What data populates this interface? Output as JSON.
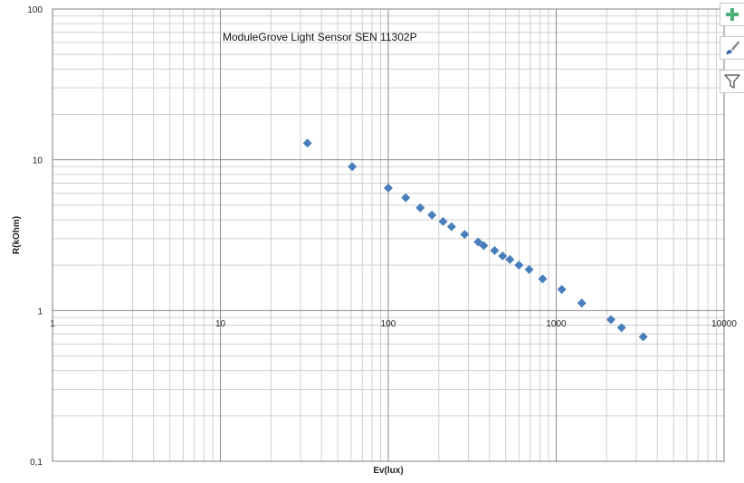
{
  "chart_data": {
    "type": "scatter",
    "title": "ModuleGrove Light Sensor SEN 11302P",
    "xlabel": "Ev(lux)",
    "ylabel": "R(kOhm)",
    "x_scale": "log",
    "y_scale": "log",
    "xlim": [
      1,
      10000
    ],
    "ylim": [
      0.1,
      100
    ],
    "x_ticks": [
      {
        "value": 1,
        "label": "1"
      },
      {
        "value": 10,
        "label": "10"
      },
      {
        "value": 100,
        "label": "100"
      },
      {
        "value": 1000,
        "label": "1000"
      },
      {
        "value": 10000,
        "label": "10000"
      }
    ],
    "y_ticks": [
      {
        "value": 0.1,
        "label": "0,1"
      },
      {
        "value": 1,
        "label": "1"
      },
      {
        "value": 10,
        "label": "10"
      },
      {
        "value": 100,
        "label": "100"
      }
    ],
    "grid": true,
    "marker": "diamond",
    "marker_color": "#4a7ebb",
    "series": [
      {
        "points": [
          [
            33,
            12.9
          ],
          [
            61,
            9.0
          ],
          [
            100,
            6.5
          ],
          [
            127,
            5.6
          ],
          [
            155,
            4.8
          ],
          [
            182,
            4.3
          ],
          [
            212,
            3.9
          ],
          [
            238,
            3.6
          ],
          [
            285,
            3.2
          ],
          [
            343,
            2.85
          ],
          [
            370,
            2.7
          ],
          [
            430,
            2.5
          ],
          [
            480,
            2.3
          ],
          [
            530,
            2.18
          ],
          [
            600,
            2.0
          ],
          [
            690,
            1.87
          ],
          [
            830,
            1.62
          ],
          [
            1080,
            1.38
          ],
          [
            1420,
            1.12
          ],
          [
            2120,
            0.87
          ],
          [
            2450,
            0.77
          ],
          [
            3300,
            0.67
          ]
        ]
      }
    ]
  },
  "toolbar": {
    "buttons": [
      {
        "icon": "plus-icon",
        "color": "#4caf7a"
      },
      {
        "icon": "brush-icon",
        "color": "#3d6aa8"
      },
      {
        "icon": "filter-icon",
        "color": "#666666"
      }
    ]
  }
}
